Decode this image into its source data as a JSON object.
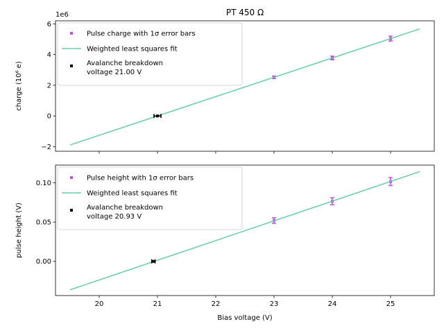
{
  "chart_data": [
    {
      "type": "scatter",
      "title": "PT 450 Ω",
      "xlabel": "",
      "ylabel": "charge (10⁶ e)",
      "offset_text": "1e6",
      "xlim": [
        19.25,
        25.75
      ],
      "ylim": [
        -2.3,
        6.2
      ],
      "yticks": [
        -2,
        0,
        2,
        4,
        6
      ],
      "ytick_labels": [
        "−2",
        "0",
        "2",
        "4",
        "6"
      ],
      "xticks": [
        20,
        21,
        22,
        23,
        24,
        25
      ],
      "show_xtick_labels": false,
      "series": [
        {
          "name": "Pulse charge with 1σ error bars",
          "kind": "errorbar",
          "color": "#c050e0",
          "x": [
            23,
            24,
            25
          ],
          "y": [
            2.52,
            3.78,
            5.04
          ],
          "yerr": [
            0.08,
            0.12,
            0.16
          ]
        },
        {
          "name": "Weighted least squares fit",
          "kind": "line",
          "color": "#66cdaa",
          "x": [
            19.5,
            25.5
          ],
          "y": [
            -1.89,
            5.67
          ]
        },
        {
          "name": "Avalanche breakdown\nvoltage 21.00 V",
          "kind": "errorbar-x",
          "color": "#000000",
          "x": [
            21.0
          ],
          "y": [
            0
          ],
          "xerr": [
            0.06
          ]
        }
      ],
      "legend": "upper-left"
    },
    {
      "type": "scatter",
      "title": "",
      "xlabel": "Bias voltage (V)",
      "ylabel": "pulse height (V)",
      "xlim": [
        19.25,
        25.75
      ],
      "ylim": [
        -0.0435,
        0.1225
      ],
      "yticks": [
        0.0,
        0.05,
        0.1
      ],
      "ytick_labels": [
        "0.00",
        "0.05",
        "0.10"
      ],
      "xticks": [
        20,
        21,
        22,
        23,
        24,
        25
      ],
      "xtick_labels": [
        "20",
        "21",
        "22",
        "23",
        "24",
        "25"
      ],
      "series": [
        {
          "name": "Pulse height with 1σ error bars",
          "kind": "errorbar",
          "color": "#c050e0",
          "x": [
            23,
            24,
            25
          ],
          "y": [
            0.052,
            0.0765,
            0.1015
          ],
          "yerr": [
            0.0035,
            0.0045,
            0.005
          ]
        },
        {
          "name": "Weighted least squares fit",
          "kind": "line",
          "color": "#66cdaa",
          "x": [
            19.5,
            25.5
          ],
          "y": [
            -0.0362,
            0.1142
          ]
        },
        {
          "name": "Avalanche breakdown\nvoltage 20.93 V",
          "kind": "errorbar-x",
          "color": "#000000",
          "x": [
            20.93
          ],
          "y": [
            0
          ],
          "xerr": [
            0.03
          ]
        }
      ],
      "legend": "upper-left"
    }
  ]
}
